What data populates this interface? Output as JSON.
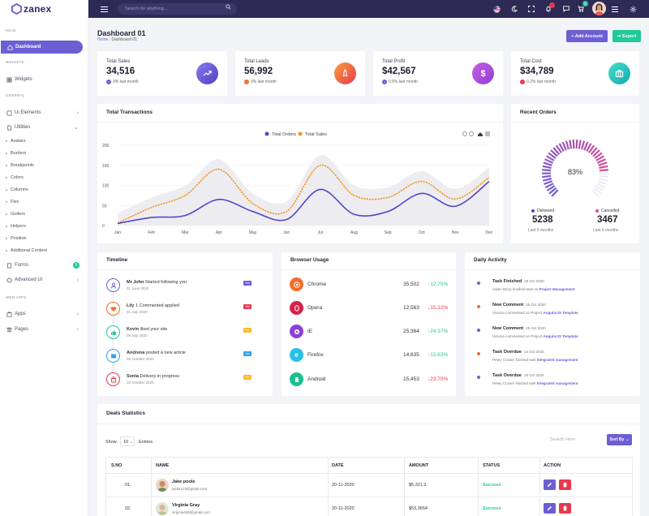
{
  "brand": {
    "name": "zanex"
  },
  "topbar": {
    "search_placeholder": "Search for anything...",
    "notification_count": "4",
    "cart_count": "5"
  },
  "sidebar": {
    "main_heading": "MAIN",
    "dashboard": "Dashboard",
    "widgets_heading": "WIDGETS",
    "widgets": "Widgets",
    "general_heading": "GENERAL",
    "ui_elements": "Ui Elements",
    "utilities": "Utilities",
    "utilities_sub": [
      "Avatars",
      "Borders",
      "Breakpoints",
      "Colors",
      "Columns",
      "Flex",
      "Gutters",
      "Helpers",
      "Position",
      "Additional Content"
    ],
    "forms": "Forms",
    "forms_badge": "6",
    "advanced_ui": "Advanced Ui",
    "webapps_heading": "WEB APPS",
    "apps": "Apps",
    "pages": "Pages"
  },
  "header": {
    "title": "Dashboard 01",
    "breadcrumb_home": "Home",
    "breadcrumb_current": "Dashboard 01",
    "add_account": "+ Add Account",
    "export": "Export"
  },
  "stats": [
    {
      "label": "Total Sales",
      "value": "34,516",
      "change": "3% last month",
      "color": "#6c5fd3"
    },
    {
      "label": "Total Leads",
      "value": "56,992",
      "change": "3% last month",
      "color": "#f46b2a"
    },
    {
      "label": "Total Profit",
      "value": "$42,567",
      "change": "0.5% last month",
      "color": "#6c5fd3"
    },
    {
      "label": "Total Cost",
      "value": "$34,789",
      "change": "0.2% last month",
      "color": "#e8384f"
    }
  ],
  "transactions": {
    "title": "Total Transactions",
    "legend_orders": "Total Orders",
    "legend_sales": "Total Sales"
  },
  "chart_data": {
    "type": "line",
    "title": "Total Transactions",
    "categories": [
      "Jan",
      "Feb",
      "Mar",
      "Apr",
      "May",
      "Jun",
      "Jul",
      "Aug",
      "Sep",
      "Oct",
      "Nov",
      "Dec"
    ],
    "ylim": [
      0,
      200
    ],
    "yticks": [
      0,
      50,
      100,
      150,
      200
    ],
    "grid": true,
    "legend": "top",
    "series": [
      {
        "name": "Total Orders",
        "color": "#5546c9",
        "values": [
          5,
          20,
          25,
          65,
          35,
          15,
          90,
          28,
          35,
          80,
          48,
          110
        ]
      },
      {
        "name": "Total Sales",
        "color": "#f7931e",
        "dashed": true,
        "values": [
          6,
          45,
          75,
          140,
          55,
          35,
          150,
          75,
          70,
          110,
          66,
          120
        ]
      }
    ]
  },
  "recent_orders": {
    "title": "Recent Orders",
    "percent": 83,
    "percent_label": "83%",
    "delivered_label": "Delivered",
    "delivered_value": "5238",
    "delivered_sub": "Last 6 months",
    "cancelled_label": "Cancelled",
    "cancelled_value": "3467",
    "cancelled_sub": "Last 6 months"
  },
  "timeline": {
    "title": "Timeline",
    "items": [
      {
        "name": "Mr John",
        "action": "Started following you",
        "date": "01 June 2020",
        "tag": "Yes",
        "tag_color": "#6c5fd3",
        "icon_color": "#6c5fd3"
      },
      {
        "name": "Lily",
        "action": "1 Commented applied",
        "date": "01 July 2020",
        "tag": "Yes",
        "tag_color": "#e8384f",
        "icon_color": "#f46b2a"
      },
      {
        "name": "Kevin",
        "action": "liked your site",
        "date": "05 July 2020",
        "tag": "Yes",
        "tag_color": "#f7b924",
        "icon_color": "#20c997"
      },
      {
        "name": "Andrena",
        "action": "posted a new article",
        "date": "09 October 2020",
        "tag": "Yes",
        "tag_color": "#35a0e8",
        "icon_color": "#35a0e8"
      },
      {
        "name": "Sonia",
        "action": "Delivery in progress",
        "date": "10 October 2020",
        "tag": "Yes",
        "tag_color": "#f7b924",
        "icon_color": "#e8384f"
      }
    ]
  },
  "browser": {
    "title": "Browser Usage",
    "items": [
      {
        "name": "Chrome",
        "value": "35,502",
        "change": "12.75%",
        "up": true,
        "color": "#f46b2a"
      },
      {
        "name": "Opera",
        "value": "12,563",
        "change": "15.12%",
        "up": false,
        "color": "#d6214c"
      },
      {
        "name": "IE",
        "value": "25,364",
        "change": "24.37%",
        "up": true,
        "color": "#8e3fd6"
      },
      {
        "name": "Firefox",
        "value": "14,635",
        "change": "15.63%",
        "up": true,
        "color": "#28c0e6"
      },
      {
        "name": "Android",
        "value": "15,453",
        "change": "23.70%",
        "up": false,
        "color": "#1bbf8f"
      }
    ]
  },
  "activity": {
    "title": "Daily Activity",
    "items": [
      {
        "title": "Task Finished",
        "date": "29 Oct 2020",
        "sub": "Adam Berry finished task on",
        "link": "Project Management",
        "color": "#6c5fd3"
      },
      {
        "title": "New Comment",
        "date": "25 Oct 2020",
        "sub": "Victoria commented on Project",
        "link": "AngularJS Template",
        "color": "#f46b2a"
      },
      {
        "title": "New Comment",
        "date": "25 Oct 2020",
        "sub": "Victoria commented on Project",
        "link": "AngularJS Template",
        "color": "#6c5fd3"
      },
      {
        "title": "Task Overdue",
        "date": "14 Oct 2020",
        "sub": "Petey Cruiser finished task",
        "link": "Integrated management",
        "color": "#f46b2a"
      },
      {
        "title": "Task Overdue",
        "date": "29 Oct 2020",
        "sub": "Petey Cruiser finished task",
        "link": "Integrated management",
        "color": "#6c5fd3"
      }
    ]
  },
  "deals": {
    "title": "Deals Statistics",
    "show_label": "Show",
    "entries_value": "10",
    "entries_label": "Entries",
    "search_placeholder": "Search Here",
    "sort_label": "Sort By",
    "columns": [
      "S.NO",
      "NAME",
      "DATE",
      "AMOUNT",
      "STATUS",
      "ACTION"
    ],
    "rows": [
      {
        "no": "01.",
        "name": "Jake poole",
        "email": "jacke123@gmail.com",
        "date": "20-11-2020",
        "amount": "$5.321.2",
        "status": "Success"
      },
      {
        "no": "02.",
        "name": "Virginia Gray",
        "email": "virginia456@gmail.com",
        "date": "20-11-2020",
        "amount": "$53,3654",
        "status": "Success"
      }
    ]
  }
}
